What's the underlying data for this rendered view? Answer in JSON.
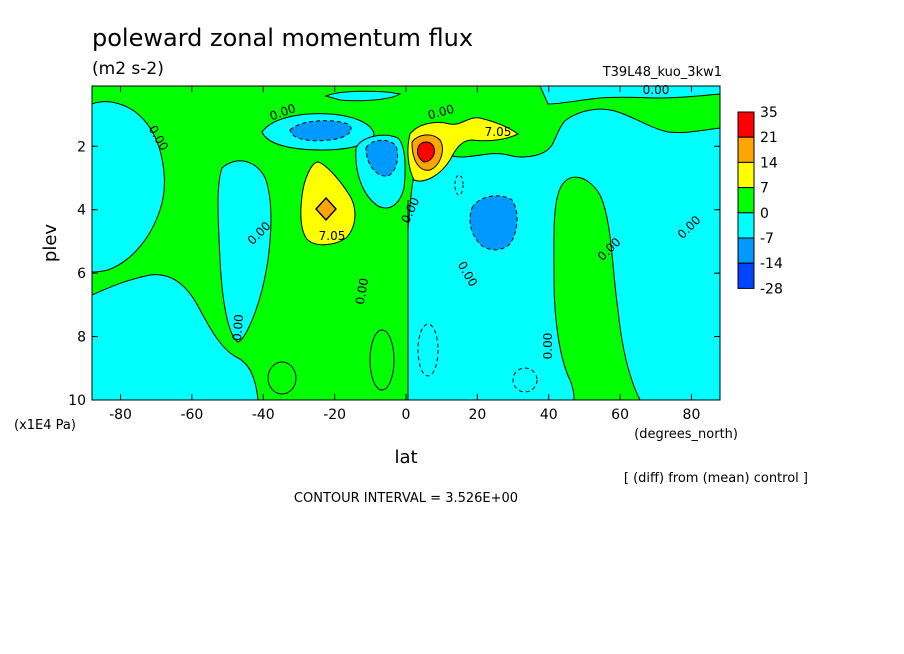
{
  "chart_data": {
    "type": "contour",
    "title": "poleward zonal momentum flux",
    "units": "(m2 s-2)",
    "run_label": "T39L48_kuo_3kw1",
    "xlabel": "lat",
    "xunits": "(degrees_north)",
    "ylabel": "plev",
    "yunits": "(x1E4 Pa)",
    "xlim": [
      -88,
      88
    ],
    "ylim": [
      10,
      0.1
    ],
    "xticks": [
      "-80",
      "-60",
      "-40",
      "-20",
      "0",
      "20",
      "40",
      "60",
      "80"
    ],
    "yticks": [
      "2",
      "4",
      "6",
      "8",
      "10"
    ],
    "note": "[ (diff) from (mean) control ]",
    "contour_interval": "CONTOUR INTERVAL = 3.526E+00",
    "colorbar": {
      "levels": [
        "35",
        "21",
        "14",
        "7",
        "0",
        "-7",
        "-14",
        "-28"
      ],
      "colors": [
        "#ff0000",
        "#ffa500",
        "#ffff00",
        "#00ff00",
        "#00ffff",
        "#0099ff",
        "#0044ff"
      ]
    },
    "contour_labels": [
      "0.00",
      "0.00",
      "0.00",
      "0.00",
      "0.00",
      "0.00",
      "0.00",
      "0.00",
      "0.00",
      "0.00",
      "0.00",
      "0.00",
      "7.05",
      "7.05"
    ],
    "colors": {
      "green": "#00ff00",
      "cyan": "#00ffff",
      "yellow": "#ffff00",
      "orange": "#ffa500",
      "red": "#ff0000",
      "mid_blue": "#0099ff",
      "deep_blue": "#0044ff"
    }
  }
}
